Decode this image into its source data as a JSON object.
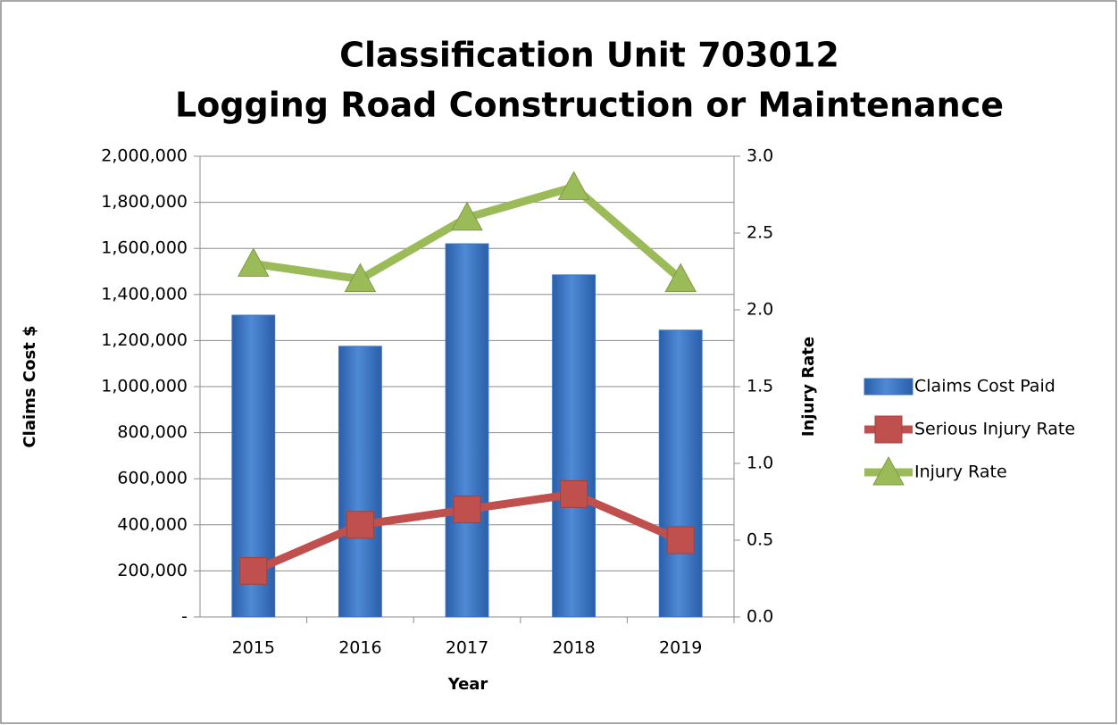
{
  "chart_data": {
    "type": "bar",
    "title": [
      "Classification Unit 703012",
      "Logging Road Construction or Maintenance"
    ],
    "x_label": "Year",
    "y_label": "Claims Cost $",
    "y2_label": "Injury Rate",
    "categories": [
      "2015",
      "2016",
      "2017",
      "2018",
      "2019"
    ],
    "series": [
      {
        "name": "Claims Cost Paid",
        "color": "#3a75c4",
        "values": [
          1310000,
          1175000,
          1620000,
          1485000,
          1245000
        ]
      },
      {
        "name": "Serious Injury Rate",
        "color": "#c0504d",
        "axis": "y2",
        "marker": "square",
        "values": [
          0.3,
          0.6,
          0.7,
          0.8,
          0.5
        ]
      },
      {
        "name": "Injury Rate",
        "color": "#9bbb59",
        "axis": "y2",
        "marker": "triangle",
        "values": [
          2.3,
          2.2,
          2.6,
          2.8,
          2.2
        ]
      }
    ],
    "ylim": [
      0,
      2000000
    ],
    "yticks": [
      {
        "value": 0,
        "label": "-"
      },
      {
        "value": 200000,
        "label": "200,000"
      },
      {
        "value": 400000,
        "label": "400,000"
      },
      {
        "value": 600000,
        "label": "600,000"
      },
      {
        "value": 800000,
        "label": "800,000"
      },
      {
        "value": 1000000,
        "label": "1,000,000"
      },
      {
        "value": 1200000,
        "label": "1,200,000"
      },
      {
        "value": 1400000,
        "label": "1,400,000"
      },
      {
        "value": 1600000,
        "label": "1,600,000"
      },
      {
        "value": 1800000,
        "label": "1,800,000"
      },
      {
        "value": 2000000,
        "label": "2,000,000"
      }
    ],
    "y2lim": [
      0,
      3
    ],
    "y2ticks": [
      {
        "value": 0,
        "label": "0.0"
      },
      {
        "value": 0.5,
        "label": "0.5"
      },
      {
        "value": 1,
        "label": "1.0"
      },
      {
        "value": 1.5,
        "label": "1.5"
      },
      {
        "value": 2,
        "label": "2.0"
      },
      {
        "value": 2.5,
        "label": "2.5"
      },
      {
        "value": 3,
        "label": "3.0"
      }
    ],
    "grid": true,
    "legend": "right"
  }
}
